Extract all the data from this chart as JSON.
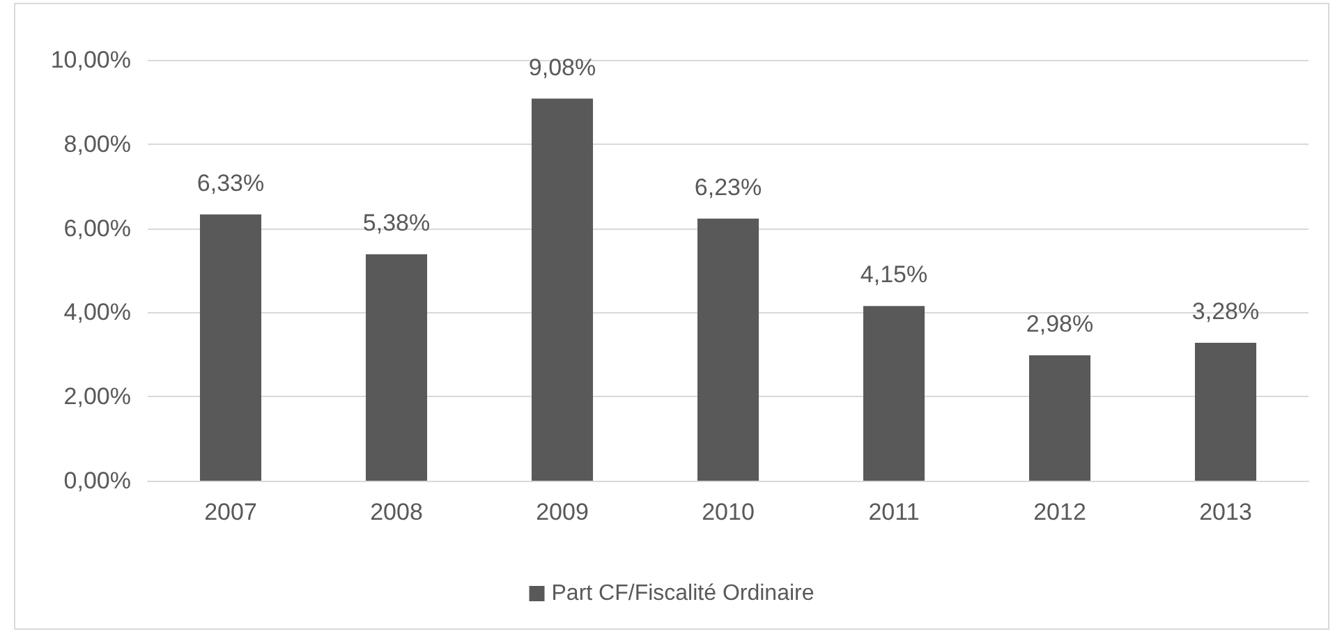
{
  "chart_data": {
    "type": "bar",
    "categories": [
      "2007",
      "2008",
      "2009",
      "2010",
      "2011",
      "2012",
      "2013"
    ],
    "series": [
      {
        "name": "Part CF/Fiscalité Ordinaire",
        "color": "#595959",
        "values": [
          6.33,
          5.38,
          9.08,
          6.23,
          4.15,
          2.98,
          3.28
        ],
        "value_labels": [
          "6,33%",
          "5,38%",
          "9,08%",
          "6,23%",
          "4,15%",
          "2,98%",
          "3,28%"
        ]
      }
    ],
    "ylim": [
      0,
      10
    ],
    "yticks": [
      {
        "value": 0,
        "label": "0,00%"
      },
      {
        "value": 2,
        "label": "2,00%"
      },
      {
        "value": 4,
        "label": "4,00%"
      },
      {
        "value": 6,
        "label": "6,00%"
      },
      {
        "value": 8,
        "label": "8,00%"
      },
      {
        "value": 10,
        "label": "10,00%"
      }
    ],
    "grid": "y",
    "legend": "bottom"
  }
}
